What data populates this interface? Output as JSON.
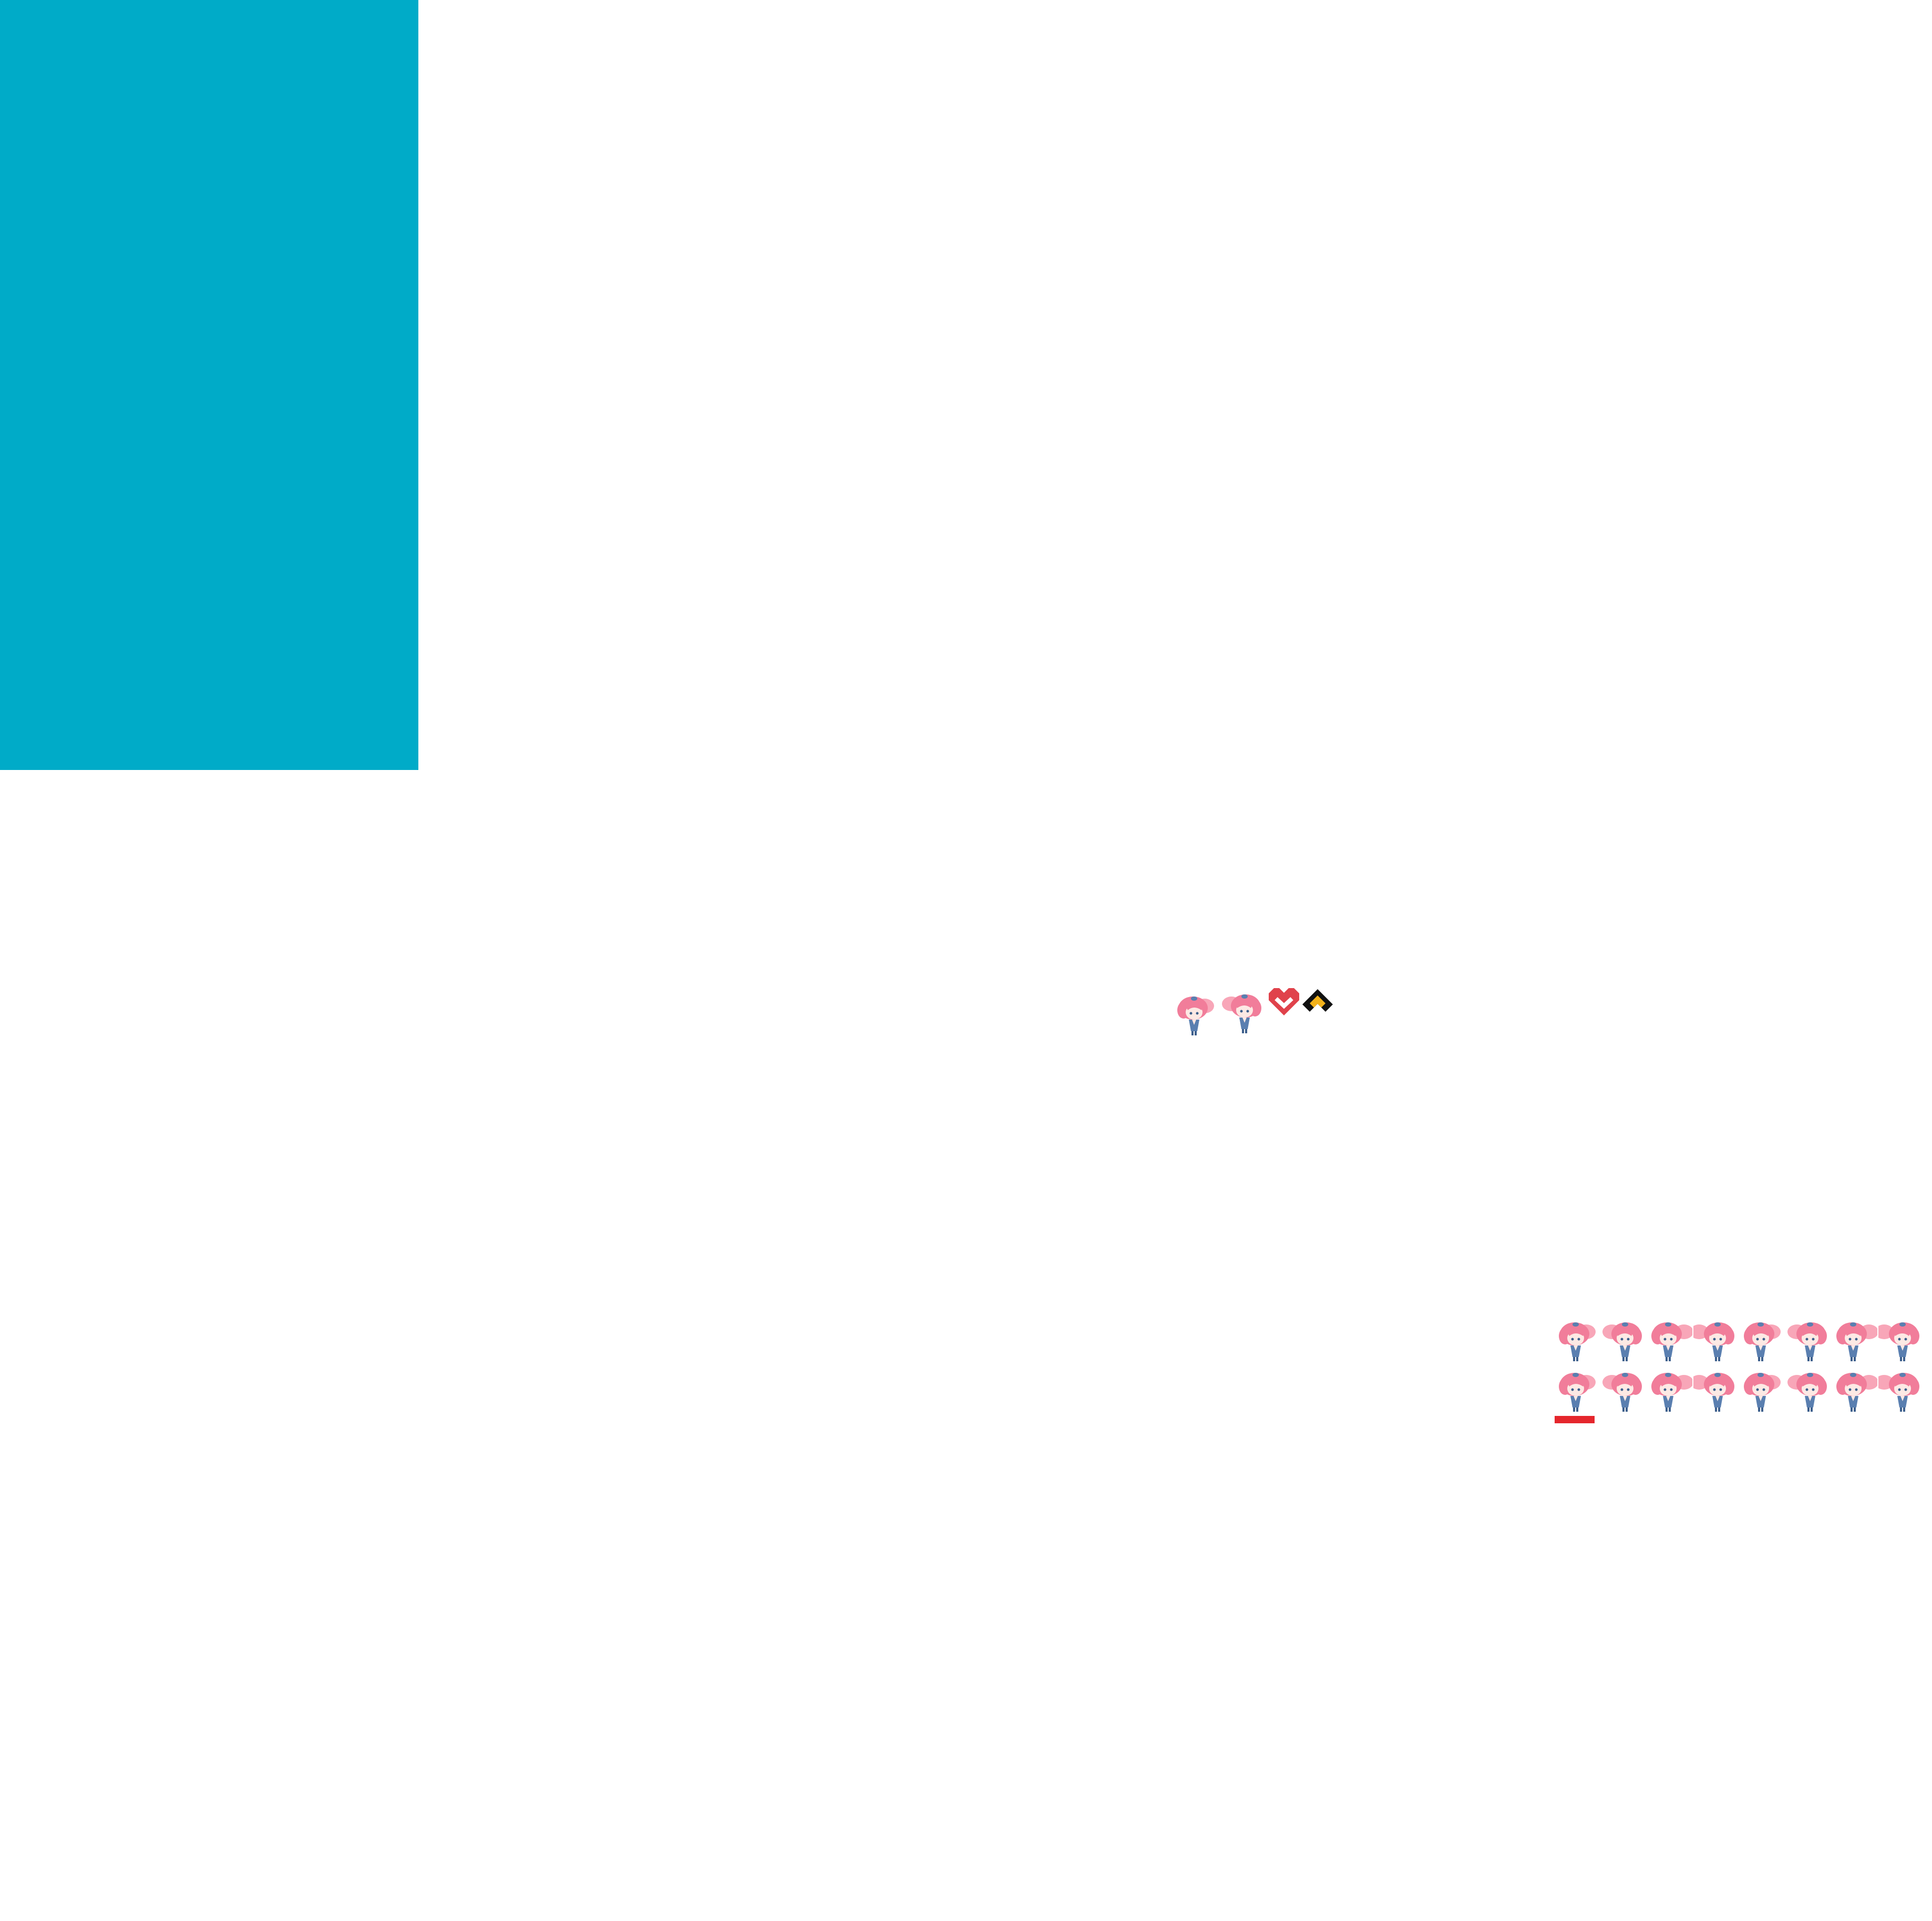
{
  "colors": {
    "background": "#ffffff",
    "panel": "#00abc8",
    "hair": "#f17d9a",
    "hair_light": "#f8a6b8",
    "skin": "#fde9e4",
    "outfit": "#5a7fb0",
    "outfit_dark": "#3d5f8c",
    "heart_icon": "#e0424b",
    "arrow_icon_bg": "#111111",
    "arrow_icon_fg": "#f2b21b",
    "selection": "#e5262c"
  },
  "preview": {
    "icons": [
      "heart-chevron-down-icon",
      "chevron-up-icon"
    ]
  },
  "frames": {
    "selected_index": 0
  }
}
